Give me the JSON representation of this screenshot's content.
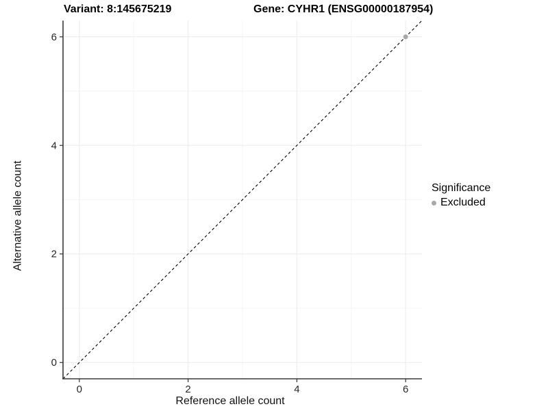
{
  "chart_data": {
    "type": "scatter",
    "title_left": "Variant: 8:145675219",
    "title_right": "Gene: CYHR1 (ENSG00000187954)",
    "xlabel": "Reference allele count",
    "ylabel": "Alternative allele count",
    "xlim": [
      -0.3,
      6.3
    ],
    "ylim": [
      -0.3,
      6.3
    ],
    "x_major_ticks": [
      0,
      2,
      4,
      6
    ],
    "y_major_ticks": [
      0,
      2,
      4,
      6
    ],
    "x_minor_ticks": [
      1,
      3,
      5
    ],
    "y_minor_ticks": [
      1,
      3,
      5
    ],
    "grid": "major+minor",
    "identity_line": {
      "style": "dashed",
      "x1": -0.3,
      "y1": -0.3,
      "x2": 6.3,
      "y2": 6.3
    },
    "series": [
      {
        "name": "Excluded",
        "color": "#a8a8a8",
        "points": [
          [
            6,
            6
          ]
        ]
      }
    ],
    "legend": {
      "title": "Significance",
      "position": "right",
      "items": [
        {
          "label": "Excluded",
          "color": "#a8a8a8",
          "marker": "circle"
        }
      ]
    }
  },
  "colors": {
    "background": "#ffffff",
    "grid_major": "#ebebeb",
    "grid_minor": "#f5f5f5",
    "axis_line": "#383838",
    "tick_mark": "#333333",
    "tick_label": "#262626",
    "identity_line": "#000000",
    "excluded_point": "#a8a8a8"
  }
}
